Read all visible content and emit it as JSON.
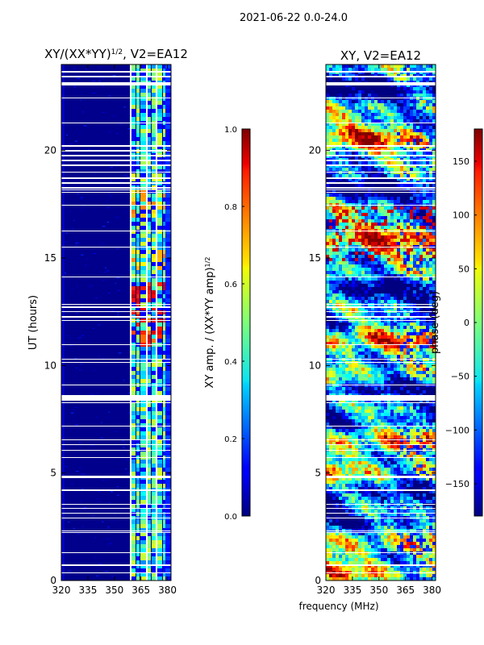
{
  "figure": {
    "suptitle": "2021-06-22 0.0-24.0",
    "xlabel": "frequency (MHz)"
  },
  "left_panel": {
    "title_main": "XY/(XX*YY)",
    "title_exp": "1/2",
    "title_tail": ", V2=EA12",
    "ylabel": "UT (hours)"
  },
  "right_panel": {
    "title": "XY, V2=EA12"
  },
  "colorbar_amp": {
    "label": "XY amp. / (XX*YY amp)",
    "label_exp": "1/2",
    "ticks": [
      "0.0",
      "0.2",
      "0.4",
      "0.6",
      "0.8",
      "1.0"
    ]
  },
  "colorbar_phase": {
    "label": "phase (deg)",
    "ticks": [
      "−150",
      "−100",
      "−50",
      "0",
      "50",
      "100",
      "150"
    ]
  },
  "chart_data": [
    {
      "type": "heatmap",
      "title": "XY/(XX*YY)^1/2, V2=EA12",
      "xlabel": "",
      "ylabel": "UT (hours)",
      "xlim": [
        320,
        382
      ],
      "ylim": [
        0,
        24
      ],
      "xticks": [
        320,
        335,
        350,
        365,
        380
      ],
      "yticks": [
        0,
        5,
        10,
        15,
        20
      ],
      "colormap": "jet",
      "clim": [
        0.0,
        1.0
      ],
      "colorbar_label": "XY amp. / (XX*YY amp)^1/2"
    },
    {
      "type": "heatmap",
      "title": "XY, V2=EA12",
      "xlabel": "frequency (MHz)",
      "ylabel": "",
      "xlim": [
        320,
        382
      ],
      "ylim": [
        0,
        24
      ],
      "xticks": [
        320,
        335,
        350,
        365,
        380
      ],
      "yticks": [
        0,
        5,
        10,
        15,
        20
      ],
      "colormap": "jet",
      "clim": [
        -180,
        180
      ],
      "colorbar_ticks": [
        -150,
        -100,
        -50,
        0,
        50,
        100,
        150
      ],
      "colorbar_label": "phase (deg)"
    }
  ]
}
